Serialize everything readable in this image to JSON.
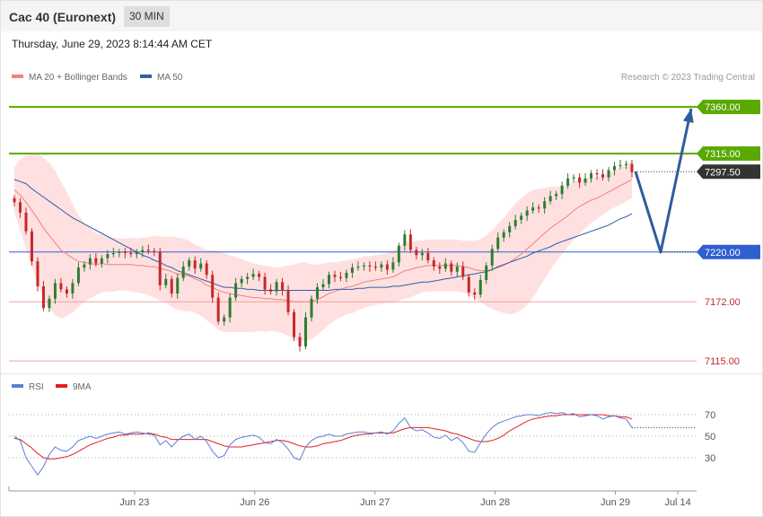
{
  "header": {
    "title": "Cac 40 (Euronext)",
    "timeframe": "30 MIN",
    "datetime": "Thursday, June 29, 2023 8:14:44 AM CET"
  },
  "legend_main": [
    {
      "label": "MA 20 + Bollinger Bands",
      "color": "#f08080"
    },
    {
      "label": "MA 50",
      "color": "#2f5fa7"
    }
  ],
  "credit": "Research © 2023 Trading Central",
  "legend_rsi": [
    {
      "label": "RSI",
      "color": "#5b7fd6"
    },
    {
      "label": "9MA",
      "color": "#e02020"
    }
  ],
  "colors": {
    "up": "#2e7d32",
    "down": "#c62828",
    "resistance": "#5aa800",
    "support": "#2f5fd0",
    "weak_support": "#f4a0a0",
    "band_fill": "#ffe0e0",
    "arrow": "#2e5c9e"
  },
  "chart_data": {
    "type": "candlestick",
    "y_range": [
      7109,
      7380
    ],
    "x_labels": [
      "Jun 23",
      "Jun 26",
      "Jun 27",
      "Jun 28",
      "Jun 29",
      "Jul 14"
    ],
    "x_label_positions": [
      0.25,
      0.5,
      0.75,
      1.0,
      1.25,
      1.38
    ],
    "levels": [
      {
        "value": 7360.0,
        "label": "7360.00",
        "kind": "resistance"
      },
      {
        "value": 7315.0,
        "label": "7315.00",
        "kind": "resistance"
      },
      {
        "value": 7297.5,
        "label": "7297.50",
        "kind": "last"
      },
      {
        "value": 7220.0,
        "label": "7220.00",
        "kind": "support"
      },
      {
        "value": 7172.0,
        "label": "7172.00",
        "kind": "minor"
      },
      {
        "value": 7115.0,
        "label": "7115.00",
        "kind": "minor"
      }
    ],
    "close": [
      7268,
      7258,
      7240,
      7211,
      7187,
      7166,
      7175,
      7190,
      7184,
      7180,
      7190,
      7205,
      7208,
      7214,
      7209,
      7214,
      7218,
      7219,
      7220,
      7219,
      7218,
      7220,
      7222,
      7221,
      7220,
      7188,
      7194,
      7180,
      7195,
      7206,
      7212,
      7204,
      7209,
      7198,
      7176,
      7153,
      7157,
      7176,
      7190,
      7194,
      7196,
      7199,
      7196,
      7184,
      7182,
      7191,
      7183,
      7162,
      7138,
      7129,
      7157,
      7175,
      7186,
      7189,
      7198,
      7196,
      7195,
      7200,
      7205,
      7206,
      7207,
      7206,
      7205,
      7208,
      7203,
      7210,
      7226,
      7237,
      7222,
      7217,
      7219,
      7212,
      7206,
      7204,
      7209,
      7201,
      7206,
      7196,
      7181,
      7179,
      7193,
      7207,
      7223,
      7234,
      7239,
      7245,
      7251,
      7255,
      7260,
      7263,
      7262,
      7269,
      7274,
      7276,
      7284,
      7291,
      7292,
      7287,
      7291,
      7296,
      7295,
      7292,
      7299,
      7303,
      7304,
      7305,
      7297
    ],
    "ma20": [
      7280,
      7275,
      7268,
      7260,
      7252,
      7243,
      7236,
      7229,
      7222,
      7218,
      7214,
      7211,
      7210,
      7209,
      7208,
      7209,
      7208,
      7208,
      7208,
      7208,
      7208,
      7207,
      7207,
      7206,
      7206,
      7204,
      7203,
      7201,
      7199,
      7198,
      7197,
      7194,
      7192,
      7188,
      7186,
      7183,
      7181,
      7180,
      7179,
      7178,
      7177,
      7176,
      7176,
      7175,
      7175,
      7174,
      7174,
      7173,
      7172,
      7172,
      7172,
      7172,
      7174,
      7177,
      7180,
      7182,
      7184,
      7186,
      7187,
      7189,
      7191,
      7192,
      7193,
      7194,
      7195,
      7196,
      7199,
      7202,
      7203,
      7205,
      7206,
      7207,
      7207,
      7207,
      7207,
      7207,
      7207,
      7206,
      7205,
      7203,
      7202,
      7202,
      7203,
      7205,
      7207,
      7210,
      7214,
      7218,
      7223,
      7228,
      7233,
      7238,
      7243,
      7247,
      7251,
      7255,
      7260,
      7264,
      7267,
      7270,
      7272,
      7275,
      7278,
      7281,
      7284,
      7287,
      7290
    ],
    "ma50": [
      7290,
      7288,
      7286,
      7281,
      7277,
      7273,
      7269,
      7265,
      7261,
      7257,
      7253,
      7250,
      7247,
      7244,
      7241,
      7238,
      7235,
      7232,
      7229,
      7226,
      7223,
      7220,
      7217,
      7215,
      7212,
      7210,
      7207,
      7205,
      7202,
      7200,
      7198,
      7196,
      7194,
      7192,
      7190,
      7188,
      7186,
      7186,
      7185,
      7185,
      7184,
      7184,
      7183,
      7183,
      7183,
      7183,
      7183,
      7183,
      7183,
      7183,
      7183,
      7183,
      7183,
      7183,
      7183,
      7184,
      7184,
      7184,
      7184,
      7185,
      7185,
      7186,
      7186,
      7186,
      7186,
      7187,
      7187,
      7188,
      7189,
      7190,
      7191,
      7191,
      7192,
      7193,
      7194,
      7195,
      7196,
      7197,
      7198,
      7199,
      7200,
      7201,
      7203,
      7206,
      7208,
      7210,
      7212,
      7214,
      7216,
      7219,
      7221,
      7223,
      7225,
      7228,
      7230,
      7232,
      7234,
      7236,
      7238,
      7240,
      7242,
      7244,
      7246,
      7249,
      7252,
      7254,
      7257
    ],
    "bb_width": [
      22,
      34,
      45,
      54,
      62,
      68,
      70,
      70,
      66,
      60,
      52,
      44,
      38,
      34,
      30,
      28,
      26,
      26,
      25,
      25,
      26,
      26,
      27,
      28,
      30,
      31,
      32,
      34,
      35,
      35,
      34,
      33,
      33,
      34,
      36,
      38,
      38,
      37,
      36,
      35,
      34,
      33,
      32,
      32,
      31,
      31,
      32,
      34,
      36,
      38,
      38,
      36,
      34,
      32,
      30,
      28,
      27,
      26,
      26,
      25,
      25,
      24,
      24,
      24,
      24,
      25,
      26,
      27,
      27,
      26,
      25,
      25,
      25,
      25,
      25,
      25,
      25,
      25,
      26,
      28,
      30,
      34,
      38,
      42,
      46,
      50,
      53,
      54,
      54,
      52,
      48,
      44,
      40,
      36,
      33,
      30,
      28,
      26,
      24,
      22,
      20,
      19,
      18,
      18,
      18,
      18,
      18
    ],
    "forecast": {
      "from": 7297.5,
      "dip": 7220.0,
      "target": 7360.0
    },
    "rsi": {
      "guides": [
        70,
        50,
        30
      ],
      "rsi_range": [
        5,
        85
      ],
      "rsi": [
        50,
        46,
        30,
        22,
        14,
        22,
        33,
        40,
        37,
        36,
        40,
        46,
        48,
        50,
        48,
        50,
        52,
        53,
        54,
        52,
        53,
        54,
        53,
        52,
        51,
        42,
        46,
        40,
        46,
        50,
        52,
        47,
        50,
        45,
        36,
        30,
        32,
        42,
        47,
        49,
        50,
        51,
        49,
        44,
        43,
        47,
        44,
        38,
        30,
        28,
        40,
        46,
        49,
        50,
        52,
        50,
        50,
        52,
        53,
        54,
        54,
        53,
        53,
        54,
        52,
        55,
        62,
        67,
        58,
        55,
        56,
        53,
        49,
        48,
        51,
        46,
        49,
        44,
        36,
        35,
        44,
        52,
        58,
        62,
        64,
        66,
        68,
        69,
        70,
        70,
        69,
        71,
        72,
        71,
        72,
        70,
        71,
        68,
        69,
        70,
        69,
        66,
        68,
        69,
        67,
        66,
        58
      ],
      "ma9": [
        48,
        47,
        43,
        39,
        34,
        30,
        29,
        29,
        30,
        31,
        33,
        36,
        39,
        42,
        44,
        46,
        48,
        49,
        51,
        51,
        52,
        52,
        52,
        53,
        52,
        50,
        49,
        47,
        47,
        47,
        47,
        47,
        47,
        47,
        45,
        43,
        41,
        40,
        40,
        40,
        41,
        42,
        43,
        44,
        45,
        46,
        46,
        45,
        43,
        41,
        40,
        40,
        41,
        43,
        44,
        45,
        46,
        48,
        50,
        51,
        52,
        52,
        53,
        53,
        53,
        53,
        55,
        57,
        58,
        58,
        58,
        58,
        57,
        56,
        55,
        53,
        52,
        50,
        48,
        46,
        45,
        45,
        46,
        48,
        51,
        55,
        58,
        61,
        64,
        66,
        67,
        68,
        69,
        69,
        70,
        70,
        70,
        70,
        70,
        70,
        70,
        70,
        69,
        69,
        68,
        68,
        66
      ]
    }
  }
}
